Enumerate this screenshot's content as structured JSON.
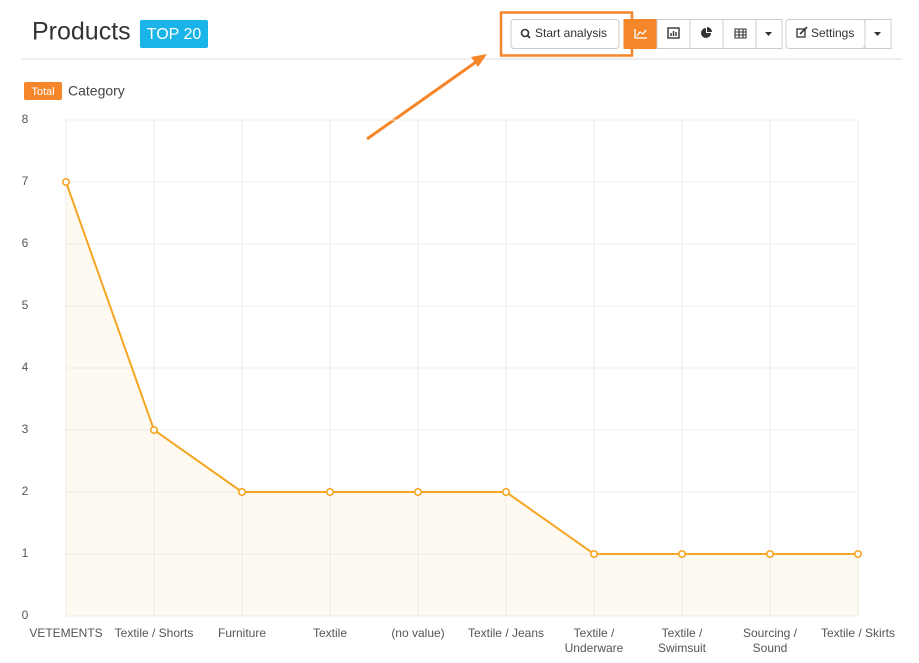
{
  "header": {
    "title": "Products",
    "badge": "TOP 20"
  },
  "toolbar": {
    "analysis": "Start analysis",
    "settings": "Settings"
  },
  "chart_data": {
    "type": "line",
    "x_label": "Category",
    "categories": [
      "VETEMENTS",
      "Textile / Shorts",
      "Furniture",
      "Textile",
      "(no value)",
      "Textile / Jeans",
      "Textile / Underware",
      "Textile / Swimsuit",
      "Sourcing / Sound",
      "Textile / Skirts"
    ],
    "series": [
      {
        "name": "Total",
        "color": "#f5a623",
        "values": [
          7,
          3,
          2,
          2,
          2,
          2,
          1,
          1,
          1,
          1
        ]
      }
    ],
    "ylim": [
      0,
      8
    ],
    "yticks": [
      0,
      1,
      2,
      3,
      4,
      5,
      6,
      7,
      8
    ],
    "grid": true
  }
}
